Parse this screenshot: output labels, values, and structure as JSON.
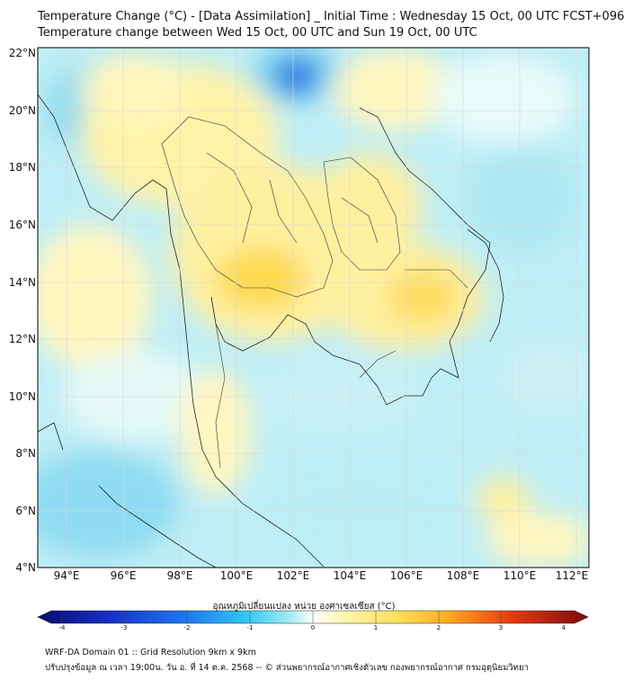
{
  "title": {
    "line1": "Temperature Change (°C) - [Data Assimilation] _ Initial Time : Wednesday 15 Oct, 00 UTC FCST+096",
    "line2": "Temperature change between Wed 15 Oct, 00 UTC and Sun 19 Oct, 00 UTC"
  },
  "map": {
    "lat_labels": [
      "22°N",
      "20°N",
      "18°N",
      "16°N",
      "14°N",
      "12°N",
      "10°N",
      "8°N",
      "6°N",
      "4°N"
    ],
    "lon_labels": [
      "94°E",
      "96°E",
      "98°E",
      "100°E",
      "102°E",
      "104°E",
      "106°E",
      "108°E",
      "110°E",
      "112°E"
    ],
    "lon_range": [
      93,
      112.5
    ],
    "lat_range": [
      4,
      22.2
    ]
  },
  "colorbar": {
    "title": "อุณหภูมิเปลี่ยนแปลง หน่วย องศาเซลเซียส (°C)",
    "ticks": [
      "-4",
      "-3",
      "-2",
      "-1",
      "0",
      "1",
      "2",
      "3",
      "4"
    ],
    "range": [
      -4,
      4
    ],
    "colors": [
      "#0a0a6e",
      "#1530c8",
      "#1e78f0",
      "#33c8f0",
      "#a8ecf5",
      "#ffffff",
      "#fff5a8",
      "#ffd84a",
      "#ff8c1a",
      "#e02010",
      "#7a0a0a"
    ]
  },
  "footer": {
    "line1": "WRF-DA Domain 01 :: Grid Resolution 9km x 9km",
    "line2": "ปรับปรุงข้อมูล ณ เวลา 19:00น. วัน อ. ที่ 14 ต.ค. 2568 -- © ส่วนพยากรณ์อากาศเชิงตัวเลข กองพยากรณ์อากาศ กรมอุตุนิยมวิทยา"
  }
}
